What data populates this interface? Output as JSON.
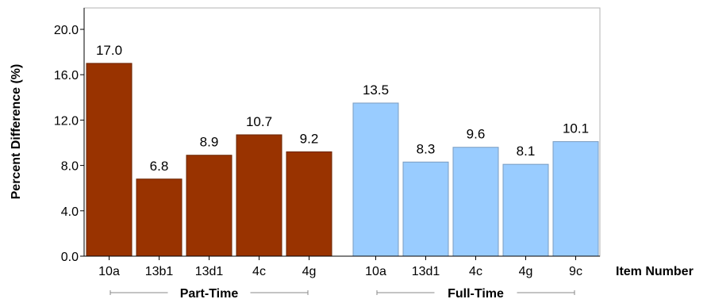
{
  "chart_data": {
    "type": "bar",
    "ylabel": "Percent Difference (%)",
    "xlabel": "Item Number",
    "ylim": [
      0,
      20
    ],
    "yticks": [
      "0.0",
      "4.0",
      "8.0",
      "12.0",
      "16.0",
      "20.0"
    ],
    "grid": false,
    "groups": [
      {
        "name": "Part-Time",
        "color": "#993300",
        "categories": [
          "10a",
          "13b1",
          "13d1",
          "4c",
          "4g"
        ],
        "values": [
          17.0,
          6.8,
          8.9,
          10.7,
          9.2
        ],
        "labels": [
          "17.0",
          "6.8",
          "8.9",
          "10.7",
          "9.2"
        ]
      },
      {
        "name": "Full-Time",
        "color": "#99ccff",
        "categories": [
          "10a",
          "13d1",
          "4c",
          "4g",
          "9c"
        ],
        "values": [
          13.5,
          8.3,
          9.6,
          8.1,
          10.1
        ],
        "labels": [
          "13.5",
          "8.3",
          "9.6",
          "8.1",
          "10.1"
        ]
      }
    ]
  }
}
